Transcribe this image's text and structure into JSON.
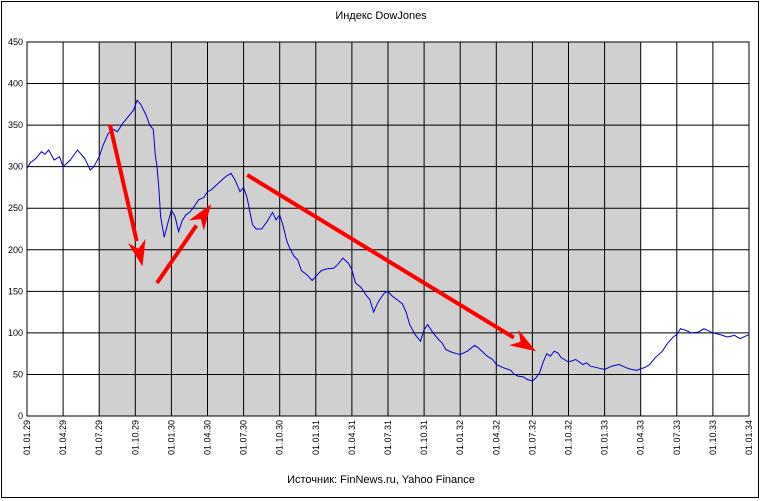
{
  "chart_data": {
    "type": "line",
    "title": "Индекс DowJones",
    "source": "Источник: FinNews.ru, Yahoo Finance",
    "xlabel": "",
    "ylabel": "",
    "ylim": [
      0,
      450
    ],
    "y_ticks": [
      0,
      50,
      100,
      150,
      200,
      250,
      300,
      350,
      400,
      450
    ],
    "x_ticks": [
      "01.01.29",
      "01.04.29",
      "01.07.29",
      "01.10.29",
      "01.01.30",
      "01.04.30",
      "01.07.30",
      "01.10.30",
      "01.01.31",
      "01.04.31",
      "01.07.31",
      "01.10.31",
      "01.01.32",
      "01.04.32",
      "01.07.32",
      "01.10.32",
      "01.01.33",
      "01.04.33",
      "01.07.33",
      "01.10.33",
      "01.01.34"
    ],
    "grid": true,
    "shaded_period": [
      "01.07.29",
      "01.04.33"
    ],
    "line_color": "#0000cc",
    "arrow_color": "#ff0000",
    "series": [
      {
        "values": [
          [
            0,
            298
          ],
          [
            0.1,
            305
          ],
          [
            0.25,
            310
          ],
          [
            0.4,
            318
          ],
          [
            0.5,
            315
          ],
          [
            0.6,
            320
          ],
          [
            0.75,
            308
          ],
          [
            0.9,
            312
          ],
          [
            1.0,
            300
          ],
          [
            1.2,
            308
          ],
          [
            1.4,
            320
          ],
          [
            1.6,
            310
          ],
          [
            1.75,
            296
          ],
          [
            1.85,
            300
          ],
          [
            2.0,
            312
          ],
          [
            2.1,
            325
          ],
          [
            2.25,
            340
          ],
          [
            2.4,
            345
          ],
          [
            2.5,
            342
          ],
          [
            2.65,
            352
          ],
          [
            2.8,
            360
          ],
          [
            2.95,
            368
          ],
          [
            3.05,
            380
          ],
          [
            3.15,
            375
          ],
          [
            3.3,
            362
          ],
          [
            3.4,
            350
          ],
          [
            3.5,
            345
          ],
          [
            3.55,
            315
          ],
          [
            3.6,
            300
          ],
          [
            3.65,
            275
          ],
          [
            3.7,
            240
          ],
          [
            3.8,
            215
          ],
          [
            3.9,
            232
          ],
          [
            4.0,
            248
          ],
          [
            4.1,
            240
          ],
          [
            4.2,
            222
          ],
          [
            4.3,
            235
          ],
          [
            4.4,
            242
          ],
          [
            4.5,
            245
          ],
          [
            4.6,
            250
          ],
          [
            4.75,
            260
          ],
          [
            4.9,
            263
          ],
          [
            5.0,
            270
          ],
          [
            5.1,
            272
          ],
          [
            5.3,
            280
          ],
          [
            5.5,
            288
          ],
          [
            5.65,
            292
          ],
          [
            5.75,
            285
          ],
          [
            5.9,
            270
          ],
          [
            6.0,
            275
          ],
          [
            6.1,
            262
          ],
          [
            6.2,
            240
          ],
          [
            6.25,
            230
          ],
          [
            6.35,
            225
          ],
          [
            6.5,
            225
          ],
          [
            6.65,
            234
          ],
          [
            6.8,
            245
          ],
          [
            6.9,
            236
          ],
          [
            7.0,
            242
          ],
          [
            7.1,
            228
          ],
          [
            7.2,
            210
          ],
          [
            7.3,
            200
          ],
          [
            7.4,
            192
          ],
          [
            7.5,
            188
          ],
          [
            7.6,
            175
          ],
          [
            7.75,
            170
          ],
          [
            7.9,
            163
          ],
          [
            8.0,
            168
          ],
          [
            8.15,
            175
          ],
          [
            8.3,
            177
          ],
          [
            8.5,
            178
          ],
          [
            8.6,
            182
          ],
          [
            8.75,
            190
          ],
          [
            8.9,
            184
          ],
          [
            9.0,
            176
          ],
          [
            9.1,
            160
          ],
          [
            9.25,
            155
          ],
          [
            9.4,
            145
          ],
          [
            9.5,
            140
          ],
          [
            9.6,
            125
          ],
          [
            9.7,
            135
          ],
          [
            9.8,
            142
          ],
          [
            9.9,
            148
          ],
          [
            10.0,
            150
          ],
          [
            10.1,
            145
          ],
          [
            10.25,
            140
          ],
          [
            10.4,
            135
          ],
          [
            10.5,
            125
          ],
          [
            10.6,
            110
          ],
          [
            10.75,
            98
          ],
          [
            10.9,
            90
          ],
          [
            11.0,
            104
          ],
          [
            11.1,
            110
          ],
          [
            11.25,
            100
          ],
          [
            11.4,
            92
          ],
          [
            11.5,
            88
          ],
          [
            11.6,
            80
          ],
          [
            11.75,
            77
          ],
          [
            11.9,
            75
          ],
          [
            12.0,
            74
          ],
          [
            12.2,
            78
          ],
          [
            12.4,
            85
          ],
          [
            12.5,
            82
          ],
          [
            12.6,
            78
          ],
          [
            12.75,
            72
          ],
          [
            12.9,
            68
          ],
          [
            13.0,
            62
          ],
          [
            13.2,
            58
          ],
          [
            13.4,
            55
          ],
          [
            13.5,
            50
          ],
          [
            13.6,
            48
          ],
          [
            13.75,
            47
          ],
          [
            13.85,
            44
          ],
          [
            14.0,
            42
          ],
          [
            14.1,
            46
          ],
          [
            14.2,
            52
          ],
          [
            14.3,
            65
          ],
          [
            14.4,
            75
          ],
          [
            14.5,
            72
          ],
          [
            14.6,
            78
          ],
          [
            14.7,
            76
          ],
          [
            14.8,
            70
          ],
          [
            15.0,
            65
          ],
          [
            15.2,
            68
          ],
          [
            15.4,
            62
          ],
          [
            15.5,
            64
          ],
          [
            15.6,
            60
          ],
          [
            15.8,
            58
          ],
          [
            16.0,
            56
          ],
          [
            16.2,
            60
          ],
          [
            16.4,
            62
          ],
          [
            16.5,
            60
          ],
          [
            16.6,
            58
          ],
          [
            16.75,
            56
          ],
          [
            16.9,
            55
          ],
          [
            17.0,
            57
          ],
          [
            17.1,
            58
          ],
          [
            17.25,
            62
          ],
          [
            17.4,
            70
          ],
          [
            17.6,
            78
          ],
          [
            17.75,
            88
          ],
          [
            17.9,
            95
          ],
          [
            18.0,
            98
          ],
          [
            18.1,
            105
          ],
          [
            18.25,
            103
          ],
          [
            18.4,
            100
          ],
          [
            18.6,
            101
          ],
          [
            18.75,
            105
          ],
          [
            18.9,
            102
          ],
          [
            19.0,
            100
          ],
          [
            19.2,
            98
          ],
          [
            19.4,
            95
          ],
          [
            19.6,
            97
          ],
          [
            19.75,
            93
          ],
          [
            19.9,
            96
          ],
          [
            20.0,
            98
          ]
        ]
      }
    ],
    "annotation_arrows": [
      {
        "from": [
          2.3,
          350
        ],
        "to": [
          3.2,
          180
        ]
      },
      {
        "from": [
          3.6,
          160
        ],
        "to": [
          5.1,
          255
        ]
      },
      {
        "from": [
          6.1,
          290
        ],
        "to": [
          14.1,
          78
        ]
      }
    ]
  }
}
